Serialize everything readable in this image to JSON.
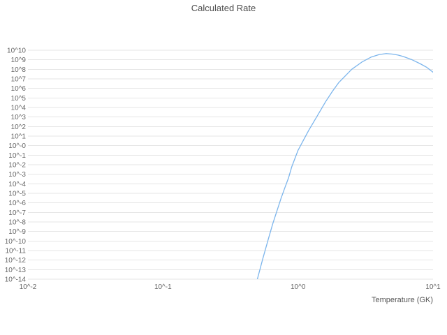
{
  "title": "Calculated Rate",
  "xlabel": "Temperature (GK)",
  "colors": {
    "line": "#7cb5ec",
    "grid": "#e6e6e6",
    "tick_text": "#666666",
    "title_text": "#4d4d4d"
  },
  "chart_data": {
    "type": "line",
    "title": "Calculated Rate",
    "xlabel": "Temperature (GK)",
    "ylabel": "",
    "x_scale": "log",
    "y_scale": "log",
    "grid": "horizontal",
    "legend": "none",
    "xlim_log10": [
      -2,
      1
    ],
    "ylim_log10": [
      -14,
      10
    ],
    "x_tick_values_log10": [
      -2,
      -1,
      0,
      1
    ],
    "x_tick_labels": [
      "10^-2",
      "10^-1",
      "10^0",
      "10^1"
    ],
    "y_tick_values_log10": [
      10,
      9,
      8,
      7,
      6,
      5,
      4,
      3,
      2,
      1,
      0,
      -1,
      -2,
      -3,
      -4,
      -5,
      -6,
      -7,
      -8,
      -9,
      -10,
      -11,
      -12,
      -13,
      -14
    ],
    "y_tick_labels": [
      "10^10",
      "10^9",
      "10^8",
      "10^7",
      "10^6",
      "10^5",
      "10^4",
      "10^3",
      "10^2",
      "10^1",
      "10^-0",
      "10^-1",
      "10^-2",
      "10^-3",
      "10^-4",
      "10^-5",
      "10^-6",
      "10^-7",
      "10^-8",
      "10^-9",
      "10^-10",
      "10^-11",
      "10^-12",
      "10^-13",
      "10^-14"
    ],
    "series": [
      {
        "name": "calculated-rate",
        "color": "#7cb5ec",
        "x_GK": [
          0.48,
          0.5,
          0.55,
          0.6,
          0.65,
          0.7,
          0.75,
          0.8,
          0.85,
          0.9,
          1.0,
          1.1,
          1.2,
          1.4,
          1.6,
          1.8,
          2.0,
          2.5,
          3.0,
          3.5,
          4.0,
          4.5,
          5.0,
          5.5,
          6.0,
          7.0,
          8.0,
          9.0,
          10.0
        ],
        "log10_rate": [
          -15.0,
          -14.0,
          -11.8,
          -9.9,
          -8.2,
          -6.8,
          -5.5,
          -4.4,
          -3.4,
          -2.2,
          -0.5,
          0.6,
          1.6,
          3.2,
          4.6,
          5.7,
          6.6,
          8.0,
          8.8,
          9.3,
          9.55,
          9.65,
          9.6,
          9.5,
          9.35,
          9.0,
          8.6,
          8.2,
          7.7
        ]
      }
    ]
  }
}
